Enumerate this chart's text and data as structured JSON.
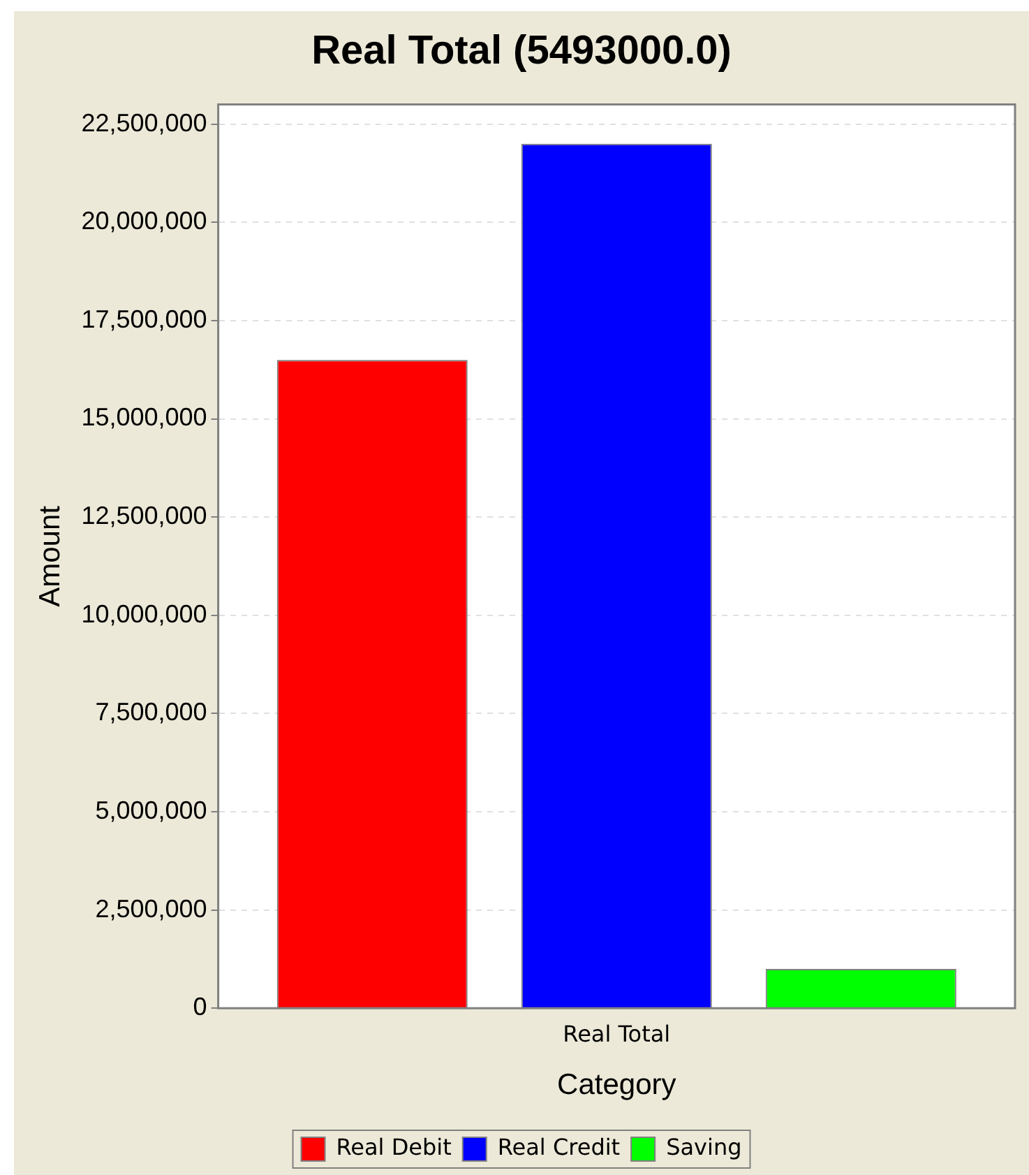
{
  "chart_data": {
    "type": "bar",
    "title": "Real Total (5493000.0)",
    "xlabel": "Category",
    "ylabel": "Amount",
    "categories": [
      "Real Total"
    ],
    "series": [
      {
        "name": "Real Debit",
        "color": "#ff0000",
        "values": [
          16500000
        ]
      },
      {
        "name": "Real Credit",
        "color": "#0000ff",
        "values": [
          22000000
        ]
      },
      {
        "name": "Saving",
        "color": "#00ff00",
        "values": [
          1000000
        ]
      }
    ],
    "ylim": [
      0,
      23000000
    ],
    "yticks": [
      0,
      {
        "value": 2500000,
        "label": "2,500,000"
      },
      {
        "value": 5000000,
        "label": "5,000,000"
      },
      {
        "value": 7500000,
        "label": "7,500,000"
      },
      {
        "value": 10000000,
        "label": "10,000,000"
      },
      {
        "value": 12500000,
        "label": "12,500,000"
      },
      {
        "value": 15000000,
        "label": "15,000,000"
      },
      {
        "value": 17500000,
        "label": "17,500,000"
      },
      {
        "value": 20000000,
        "label": "20,000,000"
      },
      {
        "value": 22500000,
        "label": "22,500,000"
      }
    ],
    "grid": "y",
    "legend": "bottom"
  }
}
